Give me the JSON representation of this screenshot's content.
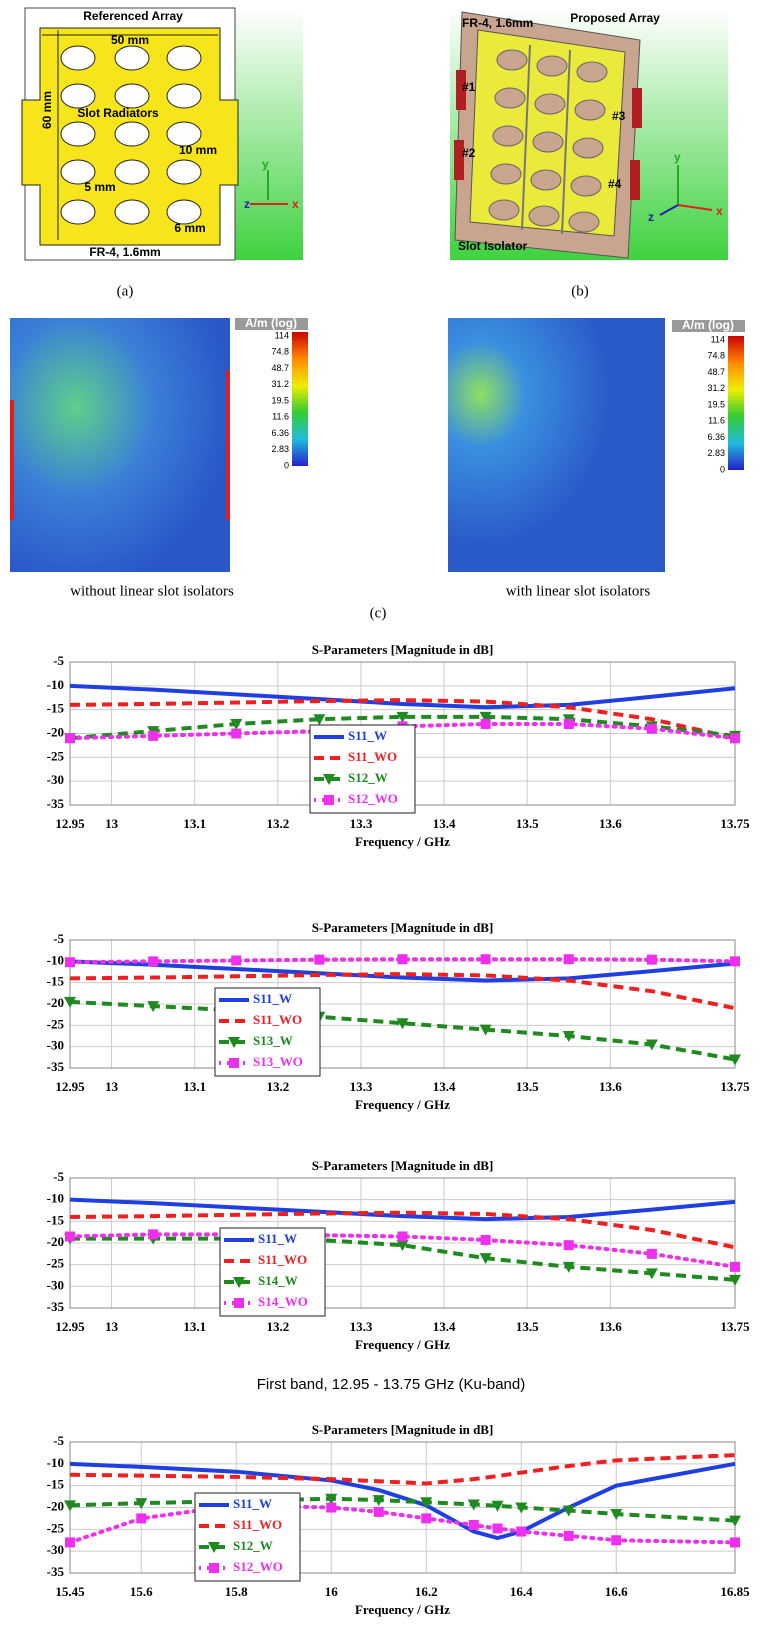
{
  "panel_a": {
    "title": "Referenced Array",
    "width_label": "50 mm",
    "height_label": "60 mm",
    "center_label": "Slot Radiators",
    "slot_label": "10 mm",
    "gap_label": "5 mm",
    "slot_height_label": "6 mm",
    "substrate_label": "FR-4, 1.6mm",
    "axis_labels": [
      "y",
      "z",
      "x"
    ],
    "caption": "(a)"
  },
  "panel_b": {
    "title": "Proposed Array",
    "substrate_label": "FR-4, 1.6mm",
    "ports": [
      "#1",
      "#2",
      "#3",
      "#4"
    ],
    "isolator_label": "Slot Isolator",
    "axis_labels": [
      "y",
      "z",
      "x"
    ],
    "caption": "(b)"
  },
  "panel_c": {
    "colorbar_unit": "A/m (log)",
    "colorbar_ticks": [
      "114",
      "74.8",
      "48.7",
      "31.2",
      "19.5",
      "11.6",
      "6.36",
      "2.83",
      "0"
    ],
    "left_caption": "without linear slot isolators",
    "right_caption": "with linear slot isolators",
    "caption": "(c)"
  },
  "band_caption": "First band, 12.95 - 13.75 GHz (Ku-band)",
  "chart_data": [
    {
      "type": "line",
      "title": "S-Parameters [Magnitude in dB]",
      "x_label": "Frequency / GHz",
      "x": [
        12.95,
        13.05,
        13.15,
        13.25,
        13.35,
        13.45,
        13.55,
        13.65,
        13.75
      ],
      "xlim": [
        12.95,
        13.75
      ],
      "xticks": [
        12.95,
        13,
        13.1,
        13.2,
        13.3,
        13.4,
        13.5,
        13.6,
        13.75
      ],
      "ylim": [
        -35,
        -5
      ],
      "yticks": [
        -5,
        -10,
        -15,
        -20,
        -25,
        -30,
        -35
      ],
      "grid": true,
      "legend": "lower center",
      "series": [
        {
          "name": "S11_W",
          "color": "#1f3fe0",
          "linestyle": "solid",
          "marker": "none",
          "values": [
            -10,
            -10.8,
            -11.8,
            -12.8,
            -13.8,
            -14.5,
            -14,
            -12.3,
            -10.5
          ]
        },
        {
          "name": "S11_WO",
          "color": "#ee2020",
          "linestyle": "dashed",
          "marker": "none",
          "values": [
            -14,
            -13.8,
            -13.5,
            -13.2,
            -13,
            -13.3,
            -14.5,
            -17,
            -21
          ]
        },
        {
          "name": "S12_W",
          "color": "#1f8a1f",
          "linestyle": "dashed",
          "marker": "triangle",
          "values": [
            -21,
            -19.5,
            -18,
            -17,
            -16.5,
            -16.5,
            -17,
            -18.5,
            -20.5
          ]
        },
        {
          "name": "S12_WO",
          "color": "#ee30ee",
          "linestyle": "dotted",
          "marker": "square",
          "values": [
            -21,
            -20.5,
            -20,
            -19.5,
            -18.5,
            -18,
            -18,
            -19,
            -21
          ]
        }
      ]
    },
    {
      "type": "line",
      "title": "S-Parameters [Magnitude in dB]",
      "x_label": "Frequency / GHz",
      "x": [
        12.95,
        13.05,
        13.15,
        13.25,
        13.35,
        13.45,
        13.55,
        13.65,
        13.75
      ],
      "xlim": [
        12.95,
        13.75
      ],
      "xticks": [
        12.95,
        13,
        13.1,
        13.2,
        13.3,
        13.4,
        13.5,
        13.6,
        13.75
      ],
      "ylim": [
        -35,
        -5
      ],
      "yticks": [
        -5,
        -10,
        -15,
        -20,
        -25,
        -30,
        -35
      ],
      "grid": true,
      "legend": "lower left",
      "series": [
        {
          "name": "S11_W",
          "color": "#1f3fe0",
          "linestyle": "solid",
          "marker": "none",
          "values": [
            -10,
            -10.8,
            -11.8,
            -12.8,
            -13.8,
            -14.5,
            -14,
            -12.3,
            -10.5
          ]
        },
        {
          "name": "S11_WO",
          "color": "#ee2020",
          "linestyle": "dashed",
          "marker": "none",
          "values": [
            -14,
            -13.8,
            -13.5,
            -13.2,
            -13,
            -13.3,
            -14.5,
            -17,
            -21
          ]
        },
        {
          "name": "S13_W",
          "color": "#1f8a1f",
          "linestyle": "dashed",
          "marker": "triangle",
          "values": [
            -19.5,
            -20.5,
            -21.5,
            -23,
            -24.5,
            -26,
            -27.5,
            -29.5,
            -33
          ]
        },
        {
          "name": "S13_WO",
          "color": "#ee30ee",
          "linestyle": "dotted",
          "marker": "square",
          "values": [
            -10.2,
            -10,
            -9.8,
            -9.6,
            -9.5,
            -9.5,
            -9.5,
            -9.6,
            -10
          ]
        }
      ]
    },
    {
      "type": "line",
      "title": "S-Parameters [Magnitude in dB]",
      "x_label": "Frequency / GHz",
      "x": [
        12.95,
        13.05,
        13.15,
        13.25,
        13.35,
        13.45,
        13.55,
        13.65,
        13.75
      ],
      "xlim": [
        12.95,
        13.75
      ],
      "xticks": [
        12.95,
        13,
        13.1,
        13.2,
        13.3,
        13.4,
        13.5,
        13.6,
        13.75
      ],
      "ylim": [
        -35,
        -5
      ],
      "yticks": [
        -5,
        -10,
        -15,
        -20,
        -25,
        -30,
        -35
      ],
      "grid": true,
      "legend": "lower left",
      "series": [
        {
          "name": "S11_W",
          "color": "#1f3fe0",
          "linestyle": "solid",
          "marker": "none",
          "values": [
            -10,
            -10.8,
            -11.8,
            -12.8,
            -13.8,
            -14.5,
            -14,
            -12.3,
            -10.5
          ]
        },
        {
          "name": "S11_WO",
          "color": "#ee2020",
          "linestyle": "dashed",
          "marker": "none",
          "values": [
            -14,
            -13.8,
            -13.5,
            -13.2,
            -13,
            -13.3,
            -14.5,
            -17,
            -21
          ]
        },
        {
          "name": "S14_W",
          "color": "#1f8a1f",
          "linestyle": "dashed",
          "marker": "triangle",
          "values": [
            -19,
            -19,
            -19,
            -19.3,
            -20.5,
            -23.5,
            -25.5,
            -27,
            -28.5
          ]
        },
        {
          "name": "S14_WO",
          "color": "#ee30ee",
          "linestyle": "dotted",
          "marker": "square",
          "values": [
            -18.5,
            -18,
            -18,
            -18.2,
            -18.5,
            -19.3,
            -20.5,
            -22.5,
            -25.5
          ]
        }
      ]
    },
    {
      "type": "line",
      "title": "S-Parameters [Magnitude in dB]",
      "x_label": "Frequency / GHz",
      "x": [
        15.45,
        15.6,
        15.8,
        16,
        16.1,
        16.2,
        16.3,
        16.35,
        16.4,
        16.5,
        16.6,
        16.85
      ],
      "xlim": [
        15.45,
        16.85
      ],
      "xticks": [
        15.45,
        15.6,
        15.8,
        16,
        16.2,
        16.4,
        16.6,
        16.85
      ],
      "ylim": [
        -35,
        -5
      ],
      "yticks": [
        -5,
        -10,
        -15,
        -20,
        -25,
        -30,
        -35
      ],
      "grid": true,
      "legend": "lower left",
      "series": [
        {
          "name": "S11_W",
          "color": "#1f3fe0",
          "linestyle": "solid",
          "marker": "none",
          "values": [
            -10,
            -10.7,
            -11.8,
            -13.8,
            -16,
            -19.5,
            -25.5,
            -27,
            -25.5,
            -20,
            -15,
            -10
          ]
        },
        {
          "name": "S11_WO",
          "color": "#ee2020",
          "linestyle": "dashed",
          "marker": "none",
          "values": [
            -12.5,
            -12.7,
            -13,
            -13.5,
            -14,
            -14.5,
            -13.5,
            -12.8,
            -12,
            -10.5,
            -9.2,
            -8
          ]
        },
        {
          "name": "S12_W",
          "color": "#1f8a1f",
          "linestyle": "dashed",
          "marker": "triangle",
          "values": [
            -19.5,
            -19,
            -18.5,
            -18,
            -18.3,
            -18.8,
            -19.3,
            -19.6,
            -20,
            -20.7,
            -21.5,
            -23
          ]
        },
        {
          "name": "S12_WO",
          "color": "#ee30ee",
          "linestyle": "dotted",
          "marker": "square",
          "values": [
            -28,
            -22.5,
            -19.5,
            -20,
            -21,
            -22.5,
            -24,
            -24.8,
            -25.5,
            -26.5,
            -27.5,
            -28
          ]
        }
      ]
    }
  ]
}
